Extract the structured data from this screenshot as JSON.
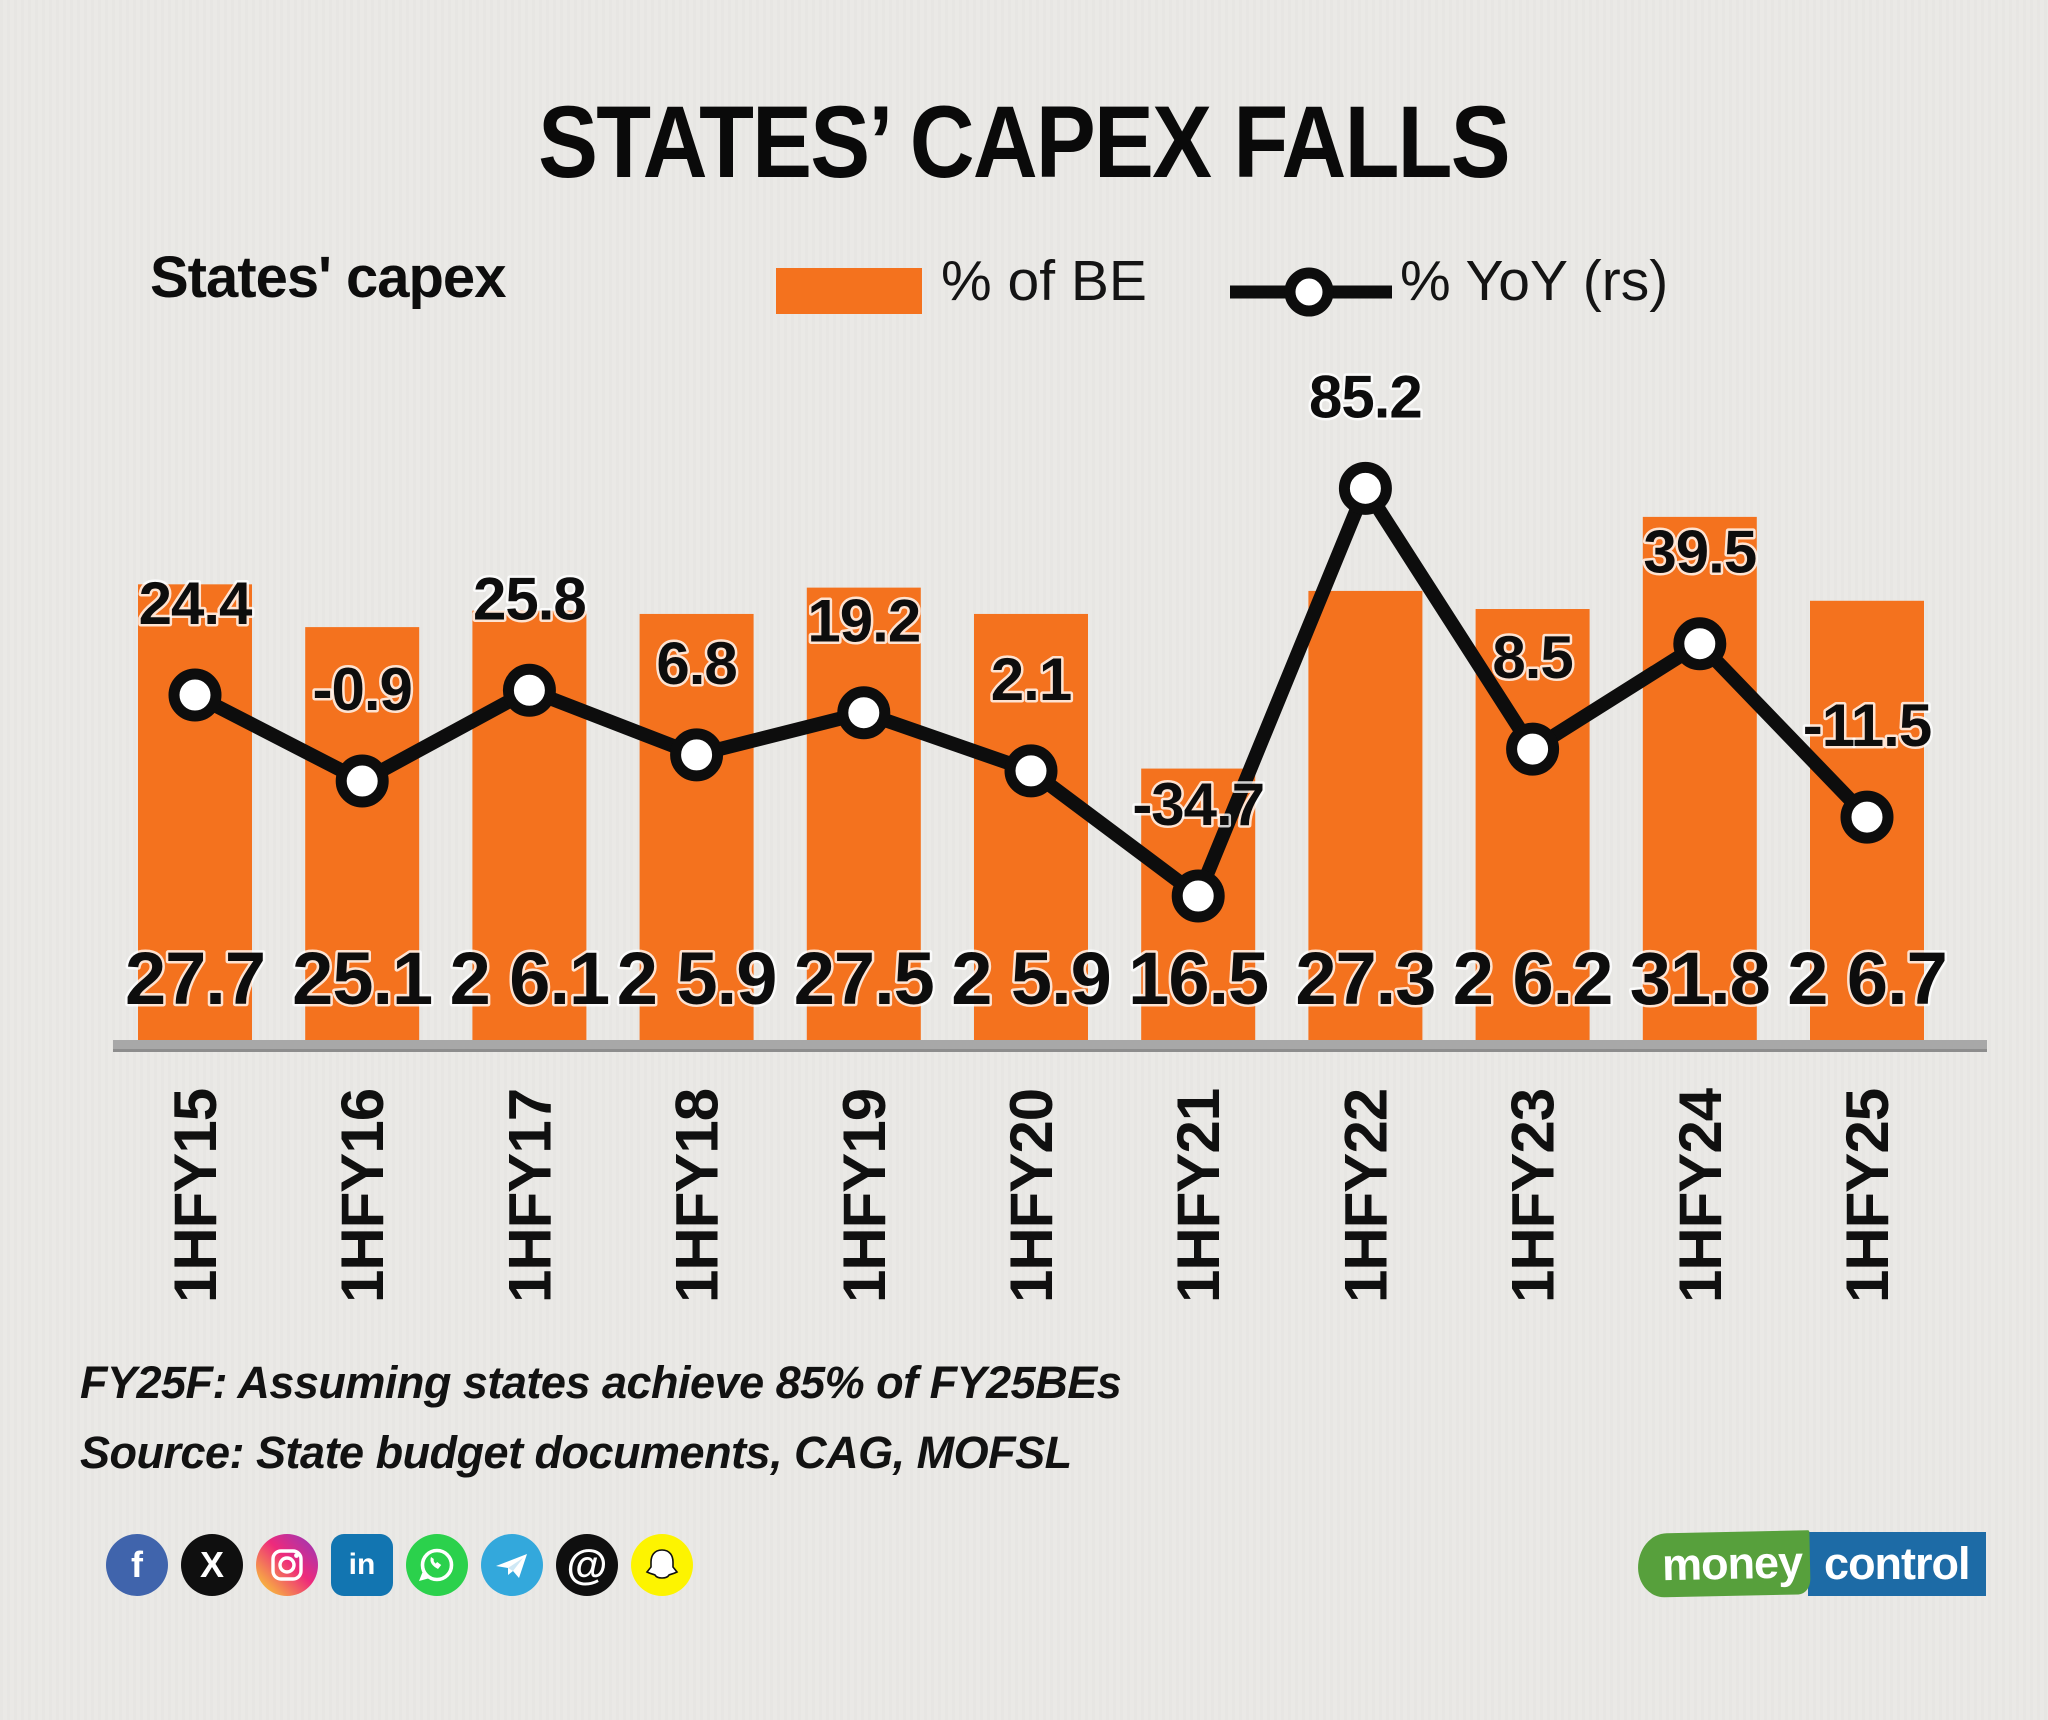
{
  "title": "STATES’ CAPEX FALLS",
  "legend": {
    "series_label": "States' capex",
    "bar_label": "% of BE",
    "line_label": "% YoY (rs)"
  },
  "chart_data": {
    "type": "bar",
    "subtype": "bar+line combo",
    "categories": [
      "1HFY15",
      "1HFY16",
      "1HFY17",
      "1HFY18",
      "1HFY19",
      "1HFY20",
      "1HFY21",
      "1HFY22",
      "1HFY23",
      "1HFY24",
      "1HFY25"
    ],
    "series": [
      {
        "name": "% of BE",
        "type": "bar",
        "color": "#F4721E",
        "values": [
          27.7,
          25.1,
          26.1,
          25.9,
          27.5,
          25.9,
          16.5,
          27.3,
          26.2,
          31.8,
          26.7
        ],
        "labels_as_shown": [
          "27.7",
          "25.1",
          "2 6.1",
          "2 5.9",
          "27.5",
          "2 5.9",
          "16.5",
          "27.3",
          "2 6.2",
          "31.8",
          "2 6.7"
        ]
      },
      {
        "name": "% YoY (rs)",
        "type": "line",
        "color": "#0d0d0d",
        "marker": "white-circle",
        "values": [
          24.4,
          -0.9,
          25.8,
          6.8,
          19.2,
          2.1,
          -34.7,
          85.2,
          8.5,
          39.5,
          -11.5
        ],
        "labels_as_shown": [
          "24.4",
          "-0.9",
          "25.8",
          "6.8",
          "19.2",
          "2.1",
          "-34.7",
          "85.2",
          "8.5",
          "39.5",
          "-11.5"
        ]
      }
    ],
    "axes": {
      "x_tick_rotation": -90,
      "value_axes_hidden": true,
      "gridlines": false,
      "baseline_color": "#a8a8a8"
    },
    "legend_position": "top"
  },
  "footnotes": [
    "FY25F: Assuming states achieve 85% of FY25BEs",
    "Source: State budget documents, CAG, MOFSL"
  ],
  "social": [
    {
      "name": "facebook",
      "glyph": "f",
      "color": "#4064AC"
    },
    {
      "name": "x-twitter",
      "glyph": "X",
      "color": "#0f0f0f"
    },
    {
      "name": "instagram",
      "glyph": "",
      "color": "gradient"
    },
    {
      "name": "linkedin",
      "glyph": "in",
      "color": "#1275B1"
    },
    {
      "name": "whatsapp",
      "glyph": "",
      "color": "#2BD14C"
    },
    {
      "name": "telegram",
      "glyph": "",
      "color": "#33A8DC"
    },
    {
      "name": "threads",
      "glyph": "@",
      "color": "#0f0f0f"
    },
    {
      "name": "snapchat",
      "glyph": "",
      "color": "#FDF400"
    }
  ],
  "logo": {
    "text_left": "money",
    "text_right": "control",
    "left_color": "#57A03C",
    "right_color": "#1D6BA6"
  }
}
